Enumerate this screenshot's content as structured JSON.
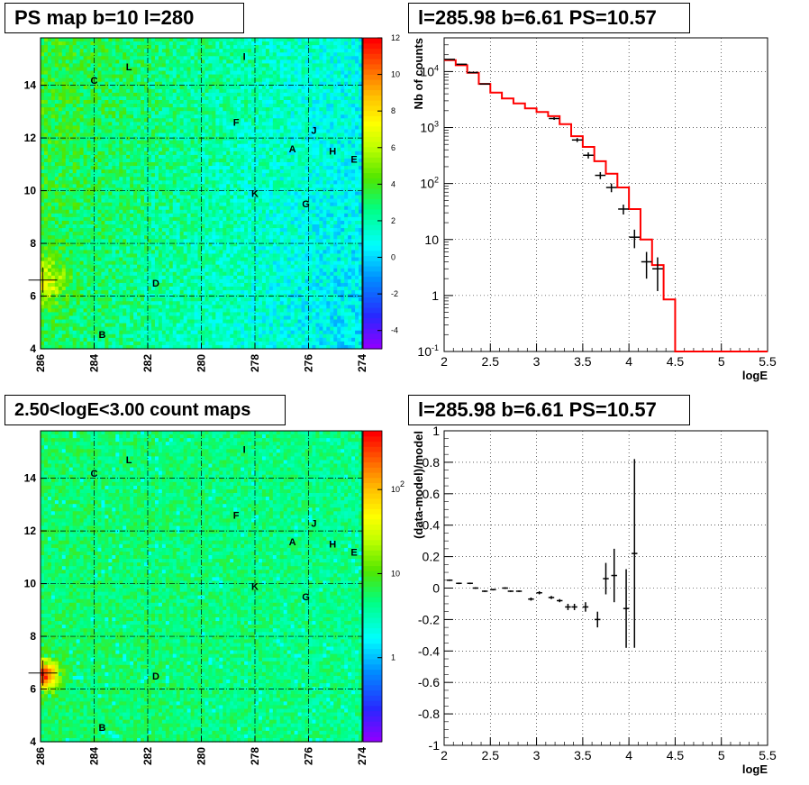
{
  "titles": {
    "ps_map": "PS map b=10 l=280",
    "spectrum": "l=285.98 b=6.61 PS=10.57",
    "count_map": "2.50<logE<3.00 count maps",
    "residuals": "l=285.98 b=6.61 PS=10.57"
  },
  "chart_data": [
    {
      "type": "heatmap",
      "id": "ps_map",
      "title": "PS map b=10 l=280",
      "x_ticks": [
        "286",
        "284",
        "282",
        "280",
        "278",
        "276",
        "274"
      ],
      "x_tick_values": [
        286,
        284,
        282,
        280,
        278,
        276,
        274
      ],
      "xlim": [
        286,
        274
      ],
      "y_ticks": [
        "4",
        "6",
        "8",
        "10",
        "12",
        "14"
      ],
      "y_tick_values": [
        4,
        6,
        8,
        10,
        12,
        14
      ],
      "ylim": [
        4,
        15.8
      ],
      "colorbar_ticks": [
        "-4",
        "-2",
        "0",
        "2",
        "4",
        "6",
        "8",
        "10",
        "12"
      ],
      "colorbar_values": [
        -4,
        -2,
        0,
        2,
        4,
        6,
        8,
        10,
        12
      ],
      "colorbar_range": [
        -5,
        12
      ],
      "marker": {
        "l": 285.98,
        "b": 6.61
      },
      "sources": [
        {
          "label": "I",
          "l": 278.4,
          "b": 15.1
        },
        {
          "label": "L",
          "l": 282.7,
          "b": 14.7
        },
        {
          "label": "C",
          "l": 284.0,
          "b": 14.2
        },
        {
          "label": "F",
          "l": 278.7,
          "b": 12.6
        },
        {
          "label": "J",
          "l": 275.8,
          "b": 12.3
        },
        {
          "label": "A",
          "l": 276.6,
          "b": 11.6
        },
        {
          "label": "H",
          "l": 275.1,
          "b": 11.5
        },
        {
          "label": "E",
          "l": 274.3,
          "b": 11.2
        },
        {
          "label": "K",
          "l": 278.0,
          "b": 9.9
        },
        {
          "label": "G",
          "l": 276.1,
          "b": 9.5
        },
        {
          "label": "D",
          "l": 281.7,
          "b": 6.5
        },
        {
          "label": "B",
          "l": 283.7,
          "b": 4.55
        }
      ]
    },
    {
      "type": "line",
      "id": "spectrum",
      "title": "l=285.98 b=6.61 PS=10.57",
      "xlabel": "logE",
      "ylabel": "Nb of counts",
      "xlim": [
        2,
        5.5
      ],
      "ylim": [
        0.1,
        40000
      ],
      "log_y": true,
      "grid": true,
      "x_ticks": [
        "2",
        "2.5",
        "3",
        "3.5",
        "4",
        "4.5",
        "5",
        "5.5"
      ],
      "x_tick_values": [
        2,
        2.5,
        3,
        3.5,
        4,
        4.5,
        5,
        5.5
      ],
      "y_ticks": [
        "10^-1",
        "1",
        "10",
        "10^2",
        "10^3",
        "10^4"
      ],
      "y_tick_values": [
        0.1,
        1,
        10,
        100,
        1000,
        10000
      ],
      "bin_width": 0.125,
      "model_bin_edges": [
        2.0,
        2.125,
        2.25,
        2.375,
        2.5,
        2.625,
        2.75,
        2.875,
        3.0,
        3.125,
        3.25,
        3.375,
        3.5,
        3.625,
        3.75,
        3.875,
        4.0,
        4.125,
        4.25,
        4.375,
        4.5,
        4.625,
        4.75,
        4.875,
        5.0,
        5.125,
        5.25,
        5.375,
        5.5
      ],
      "model_values": [
        16000,
        13000,
        9500,
        6000,
        4200,
        3300,
        2700,
        2200,
        1900,
        1600,
        1150,
        700,
        450,
        250,
        150,
        85,
        35,
        10,
        3.5,
        0.85,
        0.1,
        0.1,
        0.1,
        0.1,
        0.1,
        0.1,
        0.1,
        0.1
      ],
      "data_points": [
        {
          "x": 2.06,
          "y": 16500,
          "err": 300
        },
        {
          "x": 2.19,
          "y": 13500,
          "err": 250
        },
        {
          "x": 2.31,
          "y": 9600,
          "err": 200
        },
        {
          "x": 2.44,
          "y": 6000,
          "err": 150
        },
        {
          "x": 3.19,
          "y": 1450,
          "err": 80
        },
        {
          "x": 3.44,
          "y": 600,
          "err": 50
        },
        {
          "x": 3.56,
          "y": 320,
          "err": 40
        },
        {
          "x": 3.69,
          "y": 140,
          "err": 20
        },
        {
          "x": 3.81,
          "y": 85,
          "err": 15
        },
        {
          "x": 3.94,
          "y": 35,
          "err": 7
        },
        {
          "x": 4.06,
          "y": 11,
          "err": 4
        },
        {
          "x": 4.19,
          "y": 4,
          "err": 2
        },
        {
          "x": 4.31,
          "y": 3,
          "err": 1.8
        }
      ],
      "model_color": "#ff0000",
      "data_color": "#000000"
    },
    {
      "type": "heatmap",
      "id": "count_map",
      "title": "2.50<logE<3.00 count maps",
      "x_ticks": [
        "286",
        "284",
        "282",
        "280",
        "278",
        "276",
        "274"
      ],
      "x_tick_values": [
        286,
        284,
        282,
        280,
        278,
        276,
        274
      ],
      "xlim": [
        286,
        274
      ],
      "y_ticks": [
        "4",
        "6",
        "8",
        "10",
        "12",
        "14"
      ],
      "y_tick_values": [
        4,
        6,
        8,
        10,
        12,
        14
      ],
      "ylim": [
        4,
        15.8
      ],
      "colorbar_ticks": [
        "1",
        "10",
        "10^2"
      ],
      "colorbar_values": [
        1,
        10,
        100
      ],
      "colorbar_range_log": [
        0.1,
        500
      ],
      "marker": {
        "l": 285.98,
        "b": 6.61
      },
      "sources": [
        {
          "label": "I",
          "l": 278.4,
          "b": 15.1
        },
        {
          "label": "L",
          "l": 282.7,
          "b": 14.7
        },
        {
          "label": "C",
          "l": 284.0,
          "b": 14.2
        },
        {
          "label": "F",
          "l": 278.7,
          "b": 12.6
        },
        {
          "label": "J",
          "l": 275.8,
          "b": 12.3
        },
        {
          "label": "A",
          "l": 276.6,
          "b": 11.6
        },
        {
          "label": "H",
          "l": 275.1,
          "b": 11.5
        },
        {
          "label": "E",
          "l": 274.3,
          "b": 11.2
        },
        {
          "label": "K",
          "l": 278.0,
          "b": 9.9
        },
        {
          "label": "G",
          "l": 276.1,
          "b": 9.5
        },
        {
          "label": "D",
          "l": 281.7,
          "b": 6.5
        },
        {
          "label": "B",
          "l": 283.7,
          "b": 4.55
        }
      ]
    },
    {
      "type": "scatter",
      "id": "residuals",
      "title": "l=285.98 b=6.61 PS=10.57",
      "xlabel": "logE",
      "ylabel": "(data-model)/model",
      "xlim": [
        2,
        5.5
      ],
      "ylim": [
        -1,
        1
      ],
      "grid": true,
      "x_ticks": [
        "2",
        "2.5",
        "3",
        "3.5",
        "4",
        "4.5",
        "5",
        "5.5"
      ],
      "x_tick_values": [
        2,
        2.5,
        3,
        3.5,
        4,
        4.5,
        5,
        5.5
      ],
      "y_ticks": [
        "-1",
        "-0.8",
        "-0.6",
        "-0.4",
        "-0.2",
        "0",
        "0.2",
        "0.4",
        "0.6",
        "0.8",
        "1"
      ],
      "y_tick_values": [
        -1,
        -0.8,
        -0.6,
        -0.4,
        -0.2,
        0,
        0.2,
        0.4,
        0.6,
        0.8,
        1
      ],
      "bin_width": 0.0625,
      "points": [
        {
          "x": 2.06,
          "y": 0.05,
          "err": 0.005
        },
        {
          "x": 2.16,
          "y": 0.03,
          "err": 0.005
        },
        {
          "x": 2.28,
          "y": 0.03,
          "err": 0.005
        },
        {
          "x": 2.34,
          "y": 0.0,
          "err": 0.005
        },
        {
          "x": 2.44,
          "y": -0.02,
          "err": 0.005
        },
        {
          "x": 2.53,
          "y": -0.01,
          "err": 0.005
        },
        {
          "x": 2.66,
          "y": 0.0,
          "err": 0.005
        },
        {
          "x": 2.72,
          "y": -0.02,
          "err": 0.005
        },
        {
          "x": 2.81,
          "y": -0.02,
          "err": 0.005
        },
        {
          "x": 2.94,
          "y": -0.07,
          "err": 0.01
        },
        {
          "x": 3.03,
          "y": -0.03,
          "err": 0.01
        },
        {
          "x": 3.16,
          "y": -0.06,
          "err": 0.01
        },
        {
          "x": 3.25,
          "y": -0.08,
          "err": 0.01
        },
        {
          "x": 3.34,
          "y": -0.12,
          "err": 0.02
        },
        {
          "x": 3.41,
          "y": -0.12,
          "err": 0.02
        },
        {
          "x": 3.53,
          "y": -0.12,
          "err": 0.03
        },
        {
          "x": 3.66,
          "y": -0.2,
          "err": 0.05
        },
        {
          "x": 3.75,
          "y": 0.06,
          "err": 0.1
        },
        {
          "x": 3.84,
          "y": 0.08,
          "err": 0.17
        },
        {
          "x": 3.97,
          "y": -0.13,
          "err": 0.25
        },
        {
          "x": 4.06,
          "y": 0.22,
          "err": 0.6
        }
      ]
    }
  ]
}
